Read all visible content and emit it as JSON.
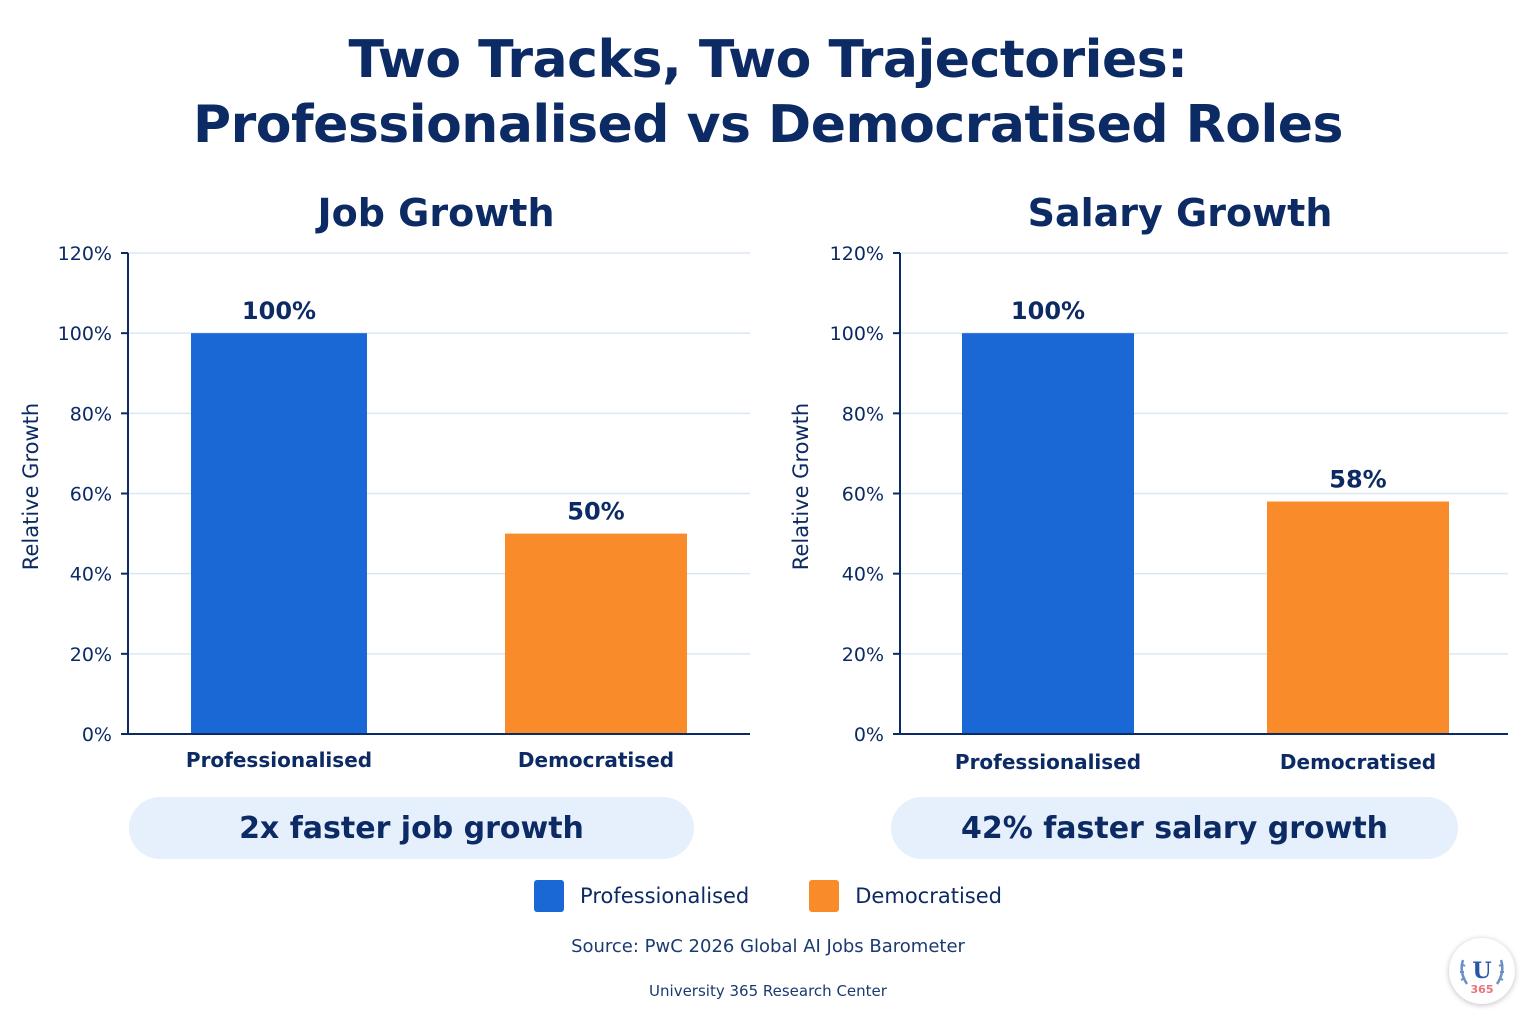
{
  "title_line1": "Two Tracks, Two Trajectories:",
  "title_line2": "Professionalised vs Democratised Roles",
  "colors": {
    "professionalised": "#1a68d6",
    "democratised": "#f98b2a",
    "text": "#0c2a63",
    "grid": "#dde7f4",
    "callout_bg": "#e6f0fc"
  },
  "chart_data": [
    {
      "type": "bar",
      "title": "Job Growth",
      "ylabel": "Relative Growth",
      "xlabel": "",
      "categories": [
        "Professionalised",
        "Democratised"
      ],
      "values": [
        100,
        50
      ],
      "value_labels": [
        "100%",
        "50%"
      ],
      "ylim": [
        0,
        120
      ],
      "yticks": [
        0,
        20,
        40,
        60,
        80,
        100,
        120
      ],
      "ytick_labels": [
        "0%",
        "20%",
        "40%",
        "60%",
        "80%",
        "100%",
        "120%"
      ],
      "grid": true,
      "callout": "2x faster job growth"
    },
    {
      "type": "bar",
      "title": "Salary Growth",
      "ylabel": "Relative Growth",
      "xlabel": "",
      "categories": [
        "Professionalised",
        "Democratised"
      ],
      "values": [
        100,
        58
      ],
      "value_labels": [
        "100%",
        "58%"
      ],
      "ylim": [
        0,
        120
      ],
      "yticks": [
        0,
        20,
        40,
        60,
        80,
        100,
        120
      ],
      "ytick_labels": [
        "0%",
        "20%",
        "40%",
        "60%",
        "80%",
        "100%",
        "120%"
      ],
      "grid": true,
      "callout": "42% faster salary growth"
    }
  ],
  "legend": {
    "placement": "bottom-center",
    "items": [
      {
        "label": "Professionalised",
        "color": "#1a68d6"
      },
      {
        "label": "Democratised",
        "color": "#f98b2a"
      }
    ]
  },
  "source": "Source: PwC 2026 Global AI Jobs Barometer",
  "credit": "University 365 Research Center",
  "logo": {
    "icon": "university-365-logo-icon",
    "text": "U 365"
  }
}
